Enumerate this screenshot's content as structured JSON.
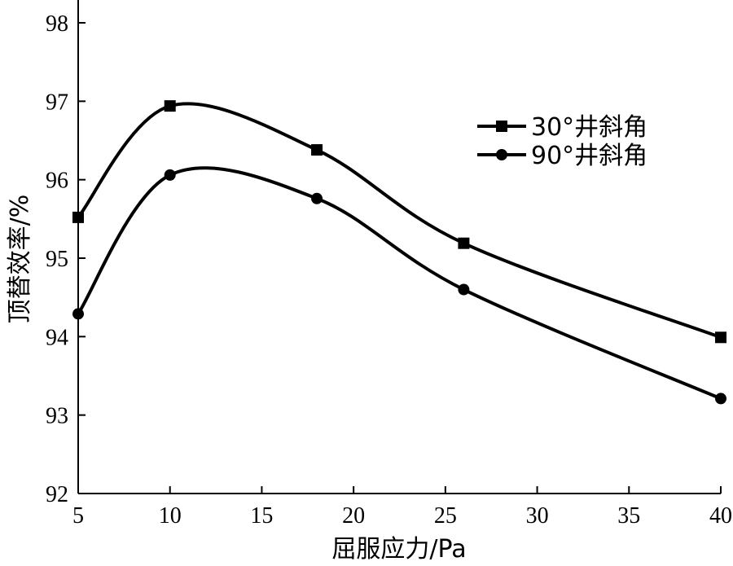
{
  "chart_data": {
    "type": "line",
    "xlabel": "屈服应力/Pa",
    "ylabel": "顶替效率/%",
    "xlim": [
      5,
      40
    ],
    "ylim": [
      92,
      98
    ],
    "xticks": [
      5,
      10,
      15,
      20,
      25,
      30,
      35,
      40
    ],
    "yticks": [
      92,
      93,
      94,
      95,
      96,
      97,
      98
    ],
    "grid": false,
    "legend_position": "top-right",
    "x": [
      5,
      10,
      18,
      26,
      40
    ],
    "series": [
      {
        "name": "30°井斜角",
        "marker": "square",
        "values": [
          95.52,
          96.94,
          96.38,
          95.19,
          93.99
        ]
      },
      {
        "name": "90°井斜角",
        "marker": "circle",
        "values": [
          94.29,
          96.06,
          95.76,
          94.6,
          93.21
        ]
      }
    ],
    "line_color": "#000000"
  }
}
